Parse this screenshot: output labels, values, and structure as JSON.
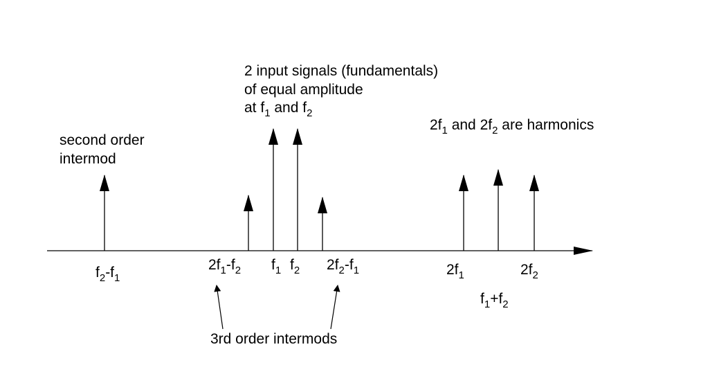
{
  "annotations": {
    "fundamentals_line1": "2 input signals (fundamentals)",
    "fundamentals_line2": "of equal amplitude",
    "fundamentals_line3": {
      "pre": "at f",
      "sub1": "1",
      "mid": " and f",
      "sub2": "2"
    },
    "harmonics_note": {
      "a": "2f",
      "sub1": "1",
      "b": " and 2f",
      "sub2": "2",
      "c": " are harmonics"
    },
    "second_order_line1": "second order",
    "second_order_line2": "intermod",
    "third_order": "3rd order intermods"
  },
  "axis_labels": {
    "f2_minus_f1": {
      "a": "f",
      "s1": "2",
      "b": "-f",
      "s2": "1"
    },
    "two_f1_minus_f2": {
      "a": "2f",
      "s1": "1",
      "b": "-f",
      "s2": "2"
    },
    "f1": {
      "a": "f",
      "s1": "1"
    },
    "f2": {
      "a": "f",
      "s1": "2"
    },
    "two_f2_minus_f1": {
      "a": "2f",
      "s1": "2",
      "b": "-f",
      "s2": "1"
    },
    "two_f1": {
      "a": "2f",
      "s1": "1"
    },
    "f1_plus_f2": {
      "a": "f",
      "s1": "1",
      "b": "+f",
      "s2": "2"
    },
    "two_f2": {
      "a": "2f",
      "s1": "2"
    }
  },
  "colors": {
    "ink": "#000000",
    "background": "#ffffff"
  }
}
